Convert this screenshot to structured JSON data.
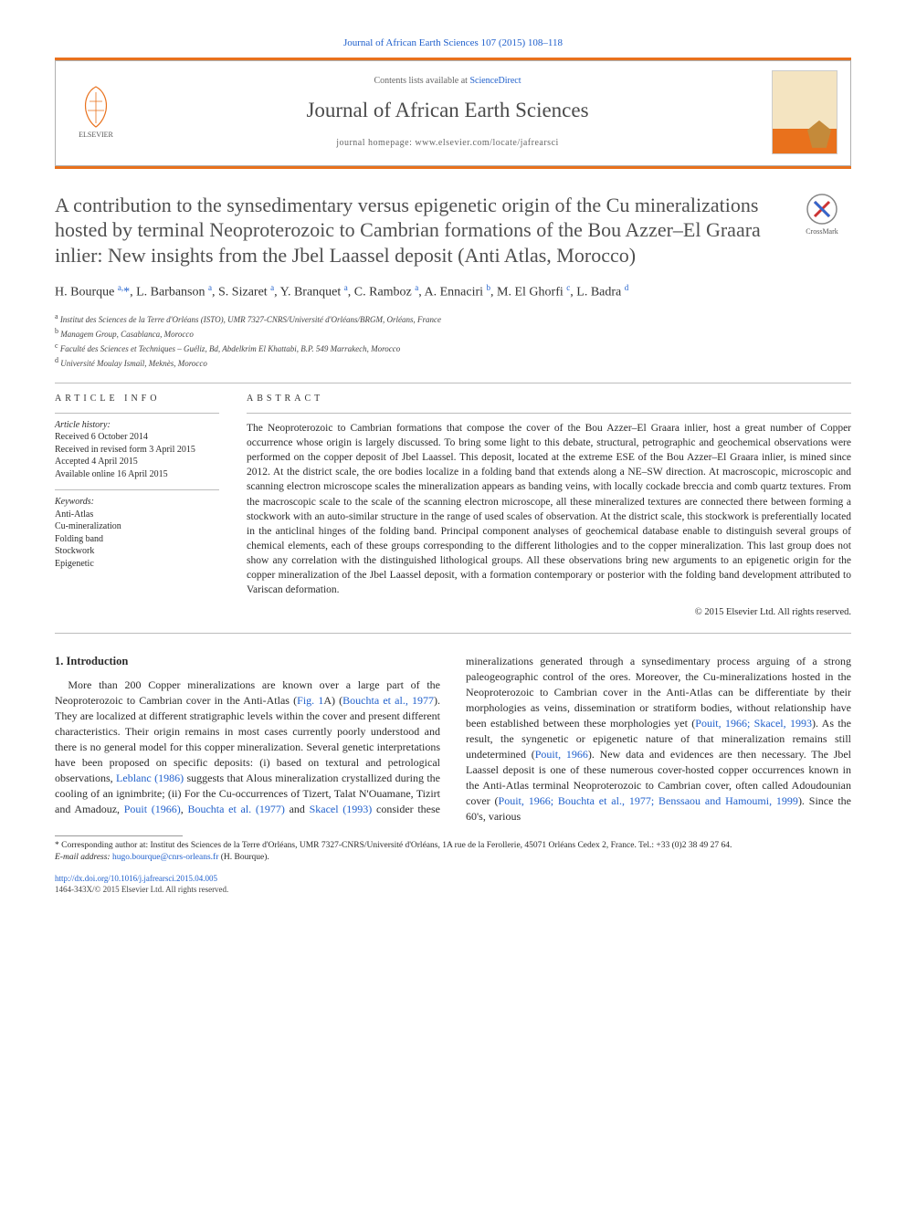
{
  "citation_line": "Journal of African Earth Sciences 107 (2015) 108–118",
  "header": {
    "contents_prefix": "Contents lists available at ",
    "contents_link": "ScienceDirect",
    "journal_name": "Journal of African Earth Sciences",
    "homepage_prefix": "journal homepage: ",
    "homepage_url": "www.elsevier.com/locate/jafrearsci",
    "elsevier_label": "ELSEVIER"
  },
  "crossmark_label": "CrossMark",
  "title": "A contribution to the synsedimentary versus epigenetic origin of the Cu mineralizations hosted by terminal Neoproterozoic to Cambrian formations of the Bou Azzer–El Graara inlier: New insights from the Jbel Laassel deposit (Anti Atlas, Morocco)",
  "authors_html": "H. Bourque <sup>a,</sup><span class='star'>*</span>, L. Barbanson <sup>a</sup>, S. Sizaret <sup>a</sup>, Y. Branquet <sup>a</sup>, C. Ramboz <sup>a</sup>, A. Ennaciri <sup>b</sup>, M. El Ghorfi <sup>c</sup>, L. Badra <sup>d</sup>",
  "affiliations": [
    "a Institut des Sciences de la Terre d'Orléans (ISTO), UMR 7327-CNRS/Université d'Orléans/BRGM, Orléans, France",
    "b Managem Group, Casablanca, Morocco",
    "c Faculté des Sciences et Techniques – Guéliz, Bd, Abdelkrim El Khattabi, B.P. 549 Marrakech, Morocco",
    "d Université Moulay Ismaïl, Meknès, Morocco"
  ],
  "article_info": {
    "heading": "ARTICLE INFO",
    "history_label": "Article history:",
    "history": [
      "Received 6 October 2014",
      "Received in revised form 3 April 2015",
      "Accepted 4 April 2015",
      "Available online 16 April 2015"
    ],
    "keywords_label": "Keywords:",
    "keywords": [
      "Anti-Atlas",
      "Cu-mineralization",
      "Folding band",
      "Stockwork",
      "Epigenetic"
    ]
  },
  "abstract": {
    "heading": "ABSTRACT",
    "text": "The Neoproterozoic to Cambrian formations that compose the cover of the Bou Azzer–El Graara inlier, host a great number of Copper occurrence whose origin is largely discussed. To bring some light to this debate, structural, petrographic and geochemical observations were performed on the copper deposit of Jbel Laassel. This deposit, located at the extreme ESE of the Bou Azzer–El Graara inlier, is mined since 2012. At the district scale, the ore bodies localize in a folding band that extends along a NE–SW direction. At macroscopic, microscopic and scanning electron microscope scales the mineralization appears as banding veins, with locally cockade breccia and comb quartz textures. From the macroscopic scale to the scale of the scanning electron microscope, all these mineralized textures are connected there between forming a stockwork with an auto-similar structure in the range of used scales of observation. At the district scale, this stockwork is preferentially located in the anticlinal hinges of the folding band. Principal component analyses of geochemical database enable to distinguish several groups of chemical elements, each of these groups corresponding to the different lithologies and to the copper mineralization. This last group does not show any correlation with the distinguished lithological groups. All these observations bring new arguments to an epigenetic origin for the copper mineralization of the Jbel Laassel deposit, with a formation contemporary or posterior with the folding band development attributed to Variscan deformation.",
    "copyright": "© 2015 Elsevier Ltd. All rights reserved."
  },
  "body": {
    "section_heading": "1. Introduction",
    "col1_p1_a": "More than 200 Copper mineralizations are known over a large part of the Neoproterozoic to Cambrian cover in the Anti-Atlas (",
    "fig1": "Fig. 1",
    "col1_p1_b": "A) (",
    "ref1": "Bouchta et al., 1977",
    "col1_p1_c": "). They are localized at different stratigraphic levels within the cover and present different characteristics. Their origin remains in most cases currently poorly understood and there is no general model for this copper mineralization. Several genetic interpretations have been proposed on specific deposits: (i) based on textural and petrological observations, ",
    "ref2": "Leblanc (1986)",
    "col1_p1_d": " suggests that Alous mineralization",
    "col2_a": "crystallized during the cooling of an ignimbrite; (ii) For the Cu-occurrences of Tizert, Talat N'Ouamane, Tizirt and Amadouz, ",
    "ref3": "Pouit (1966)",
    "col2_b": ", ",
    "ref4": "Bouchta et al. (1977)",
    "col2_c": " and ",
    "ref5": "Skacel (1993)",
    "col2_d": " consider these mineralizations generated through a synsedimentary process arguing of a strong paleogeographic control of the ores. Moreover, the Cu-mineralizations hosted in the Neoproterozoic to Cambrian cover in the Anti-Atlas can be differentiate by their morphologies as veins, dissemination or stratiform bodies, without relationship have been established between these morphologies yet (",
    "ref6": "Pouit, 1966; Skacel, 1993",
    "col2_e": "). As the result, the syngenetic or epigenetic nature of that mineralization remains still undetermined (",
    "ref7": "Pouit, 1966",
    "col2_f": "). New data and evidences are then necessary. The Jbel Laassel deposit is one of these numerous cover-hosted copper occurrences known in the Anti-Atlas terminal Neoproterozoic to Cambrian cover, often called Adoudounian cover (",
    "ref8": "Pouit, 1966; Bouchta et al., 1977; Benssaou and Hamoumi, 1999",
    "col2_g": "). Since the 60's, various"
  },
  "footnotes": {
    "corr_a": "* Corresponding author at: Institut des Sciences de la Terre d'Orléans, UMR 7327-CNRS/Université d'Orléans, 1A rue de la Ferollerie, 45071 Orléans Cedex 2, France. Tel.: +33 (0)2 38 49 27 64.",
    "email_label": "E-mail address: ",
    "email": "hugo.bourque@cnrs-orleans.fr",
    "email_tail": " (H. Bourque)."
  },
  "bottom": {
    "doi": "http://dx.doi.org/10.1016/j.jafrearsci.2015.04.005",
    "issn_copy": "1464-343X/© 2015 Elsevier Ltd. All rights reserved."
  },
  "colors": {
    "link": "#2060cc",
    "accent": "#e9711c",
    "text": "#2a2a2a",
    "rule": "#bcbcbc"
  }
}
